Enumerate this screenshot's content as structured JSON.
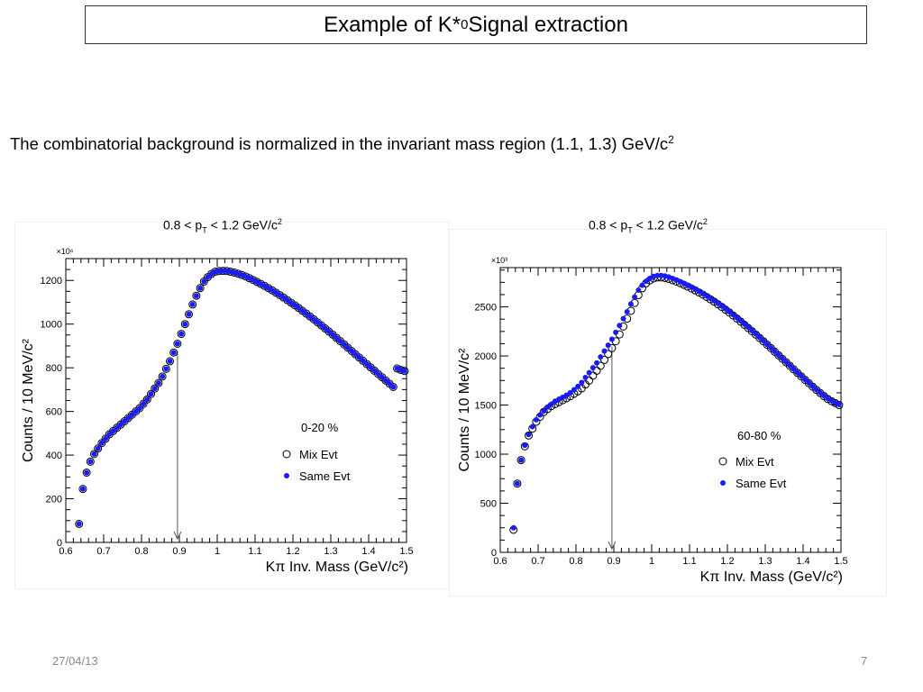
{
  "slide": {
    "title_main": "Example of K*",
    "title_sup": "0",
    "title_rest": " Signal extraction",
    "caption_main": "The combinatorial background is normalized in the invariant mass region (1.1, 1.3) GeV/c",
    "caption_sup": "2",
    "date": "27/04/13",
    "page": "7"
  },
  "panel_titles": [
    {
      "pre": "0.8 < p",
      "sub": "T",
      "mid": " < 1.2 GeV/c",
      "sup": "2"
    },
    {
      "pre": "0.8 < p",
      "sub": "T",
      "mid": " < 1.2 GeV/c",
      "sup": "2"
    }
  ],
  "colors": {
    "same_evt": "#1a1aff",
    "mix_evt": "#000000",
    "frame": "#000000"
  },
  "chart_data": [
    {
      "type": "scatter",
      "centrality": "0-20 %",
      "xlabel": "Kπ Inv. Mass (GeV/c²)",
      "ylabel": "Counts / 10 MeV/c²",
      "y_multiplier": "×10⁶",
      "xlim": [
        0.6,
        1.5
      ],
      "ylim": [
        0,
        1300
      ],
      "xticks": [
        0.6,
        0.7,
        0.8,
        0.9,
        1,
        1.1,
        1.2,
        1.3,
        1.4,
        1.5
      ],
      "xtick_labels": [
        "0.6",
        "0.7",
        "0.8",
        "0.9",
        "1",
        "1.1",
        "1.2",
        "1.3",
        "1.4",
        "1.5"
      ],
      "yticks": [
        0,
        200,
        400,
        600,
        800,
        1000,
        1200
      ],
      "ytick_labels": [
        "0",
        "200",
        "400",
        "600",
        "800",
        "1000",
        "1200"
      ],
      "marker_x": 0.895,
      "legend": [
        "Mix Evt",
        "Same Evt"
      ],
      "series": [
        {
          "name": "Mix Evt",
          "marker": "open-circle",
          "x": [
            0.635,
            0.645,
            0.655,
            0.665,
            0.675,
            0.685,
            0.695,
            0.705,
            0.715,
            0.725,
            0.735,
            0.745,
            0.755,
            0.765,
            0.775,
            0.785,
            0.795,
            0.805,
            0.815,
            0.825,
            0.835,
            0.845,
            0.855,
            0.865,
            0.875,
            0.885,
            0.895,
            0.905,
            0.915,
            0.925,
            0.935,
            0.945,
            0.955,
            0.965,
            0.975,
            0.985,
            0.995,
            1.005,
            1.015,
            1.025,
            1.035,
            1.045,
            1.055,
            1.065,
            1.075,
            1.085,
            1.095,
            1.105,
            1.115,
            1.125,
            1.135,
            1.145,
            1.155,
            1.165,
            1.175,
            1.185,
            1.195,
            1.205,
            1.215,
            1.225,
            1.235,
            1.245,
            1.255,
            1.265,
            1.275,
            1.285,
            1.295,
            1.305,
            1.315,
            1.325,
            1.335,
            1.345,
            1.355,
            1.365,
            1.375,
            1.385,
            1.395,
            1.405,
            1.415,
            1.425,
            1.435,
            1.445,
            1.455,
            1.465,
            1.475,
            1.485,
            1.495
          ],
          "y": [
            85,
            245,
            320,
            370,
            405,
            430,
            455,
            475,
            495,
            510,
            525,
            540,
            555,
            570,
            585,
            600,
            615,
            635,
            655,
            680,
            705,
            730,
            760,
            795,
            830,
            870,
            910,
            955,
            1000,
            1045,
            1090,
            1130,
            1165,
            1195,
            1215,
            1230,
            1240,
            1243,
            1244,
            1243,
            1240,
            1236,
            1231,
            1225,
            1218,
            1210,
            1202,
            1193,
            1184,
            1175,
            1165,
            1155,
            1144,
            1133,
            1122,
            1110,
            1098,
            1086,
            1074,
            1061,
            1048,
            1035,
            1022,
            1008,
            994,
            980,
            966,
            952,
            937,
            922,
            907,
            892,
            877,
            862,
            847,
            832,
            817,
            802,
            787,
            772,
            757,
            742,
            727,
            712,
            797,
            790,
            785
          ]
        },
        {
          "name": "Same Evt",
          "marker": "filled-circle",
          "x": [
            0.635,
            0.645,
            0.655,
            0.665,
            0.675,
            0.685,
            0.695,
            0.705,
            0.715,
            0.725,
            0.735,
            0.745,
            0.755,
            0.765,
            0.775,
            0.785,
            0.795,
            0.805,
            0.815,
            0.825,
            0.835,
            0.845,
            0.855,
            0.865,
            0.875,
            0.885,
            0.895,
            0.905,
            0.915,
            0.925,
            0.935,
            0.945,
            0.955,
            0.965,
            0.975,
            0.985,
            0.995,
            1.005,
            1.015,
            1.025,
            1.035,
            1.045,
            1.055,
            1.065,
            1.075,
            1.085,
            1.095,
            1.105,
            1.115,
            1.125,
            1.135,
            1.145,
            1.155,
            1.165,
            1.175,
            1.185,
            1.195,
            1.205,
            1.215,
            1.225,
            1.235,
            1.245,
            1.255,
            1.265,
            1.275,
            1.285,
            1.295,
            1.305,
            1.315,
            1.325,
            1.335,
            1.345,
            1.355,
            1.365,
            1.375,
            1.385,
            1.395,
            1.405,
            1.415,
            1.425,
            1.435,
            1.445,
            1.455,
            1.465,
            1.475,
            1.485,
            1.495
          ],
          "y": [
            85,
            245,
            320,
            370,
            405,
            430,
            455,
            475,
            495,
            510,
            525,
            540,
            555,
            570,
            585,
            600,
            615,
            635,
            655,
            680,
            705,
            730,
            760,
            795,
            830,
            870,
            910,
            955,
            1000,
            1045,
            1090,
            1130,
            1165,
            1195,
            1215,
            1230,
            1240,
            1243,
            1244,
            1243,
            1240,
            1236,
            1231,
            1225,
            1218,
            1210,
            1202,
            1193,
            1184,
            1175,
            1165,
            1155,
            1144,
            1133,
            1122,
            1110,
            1098,
            1086,
            1074,
            1061,
            1048,
            1035,
            1022,
            1008,
            994,
            980,
            966,
            952,
            937,
            922,
            907,
            892,
            877,
            862,
            847,
            832,
            817,
            802,
            787,
            772,
            757,
            742,
            727,
            712,
            797,
            790,
            785
          ]
        }
      ]
    },
    {
      "type": "scatter",
      "centrality": "60-80 %",
      "xlabel": "Kπ Inv. Mass (GeV/c²)",
      "ylabel": "Counts / 10 MeV/c²",
      "y_multiplier": "×10³",
      "xlim": [
        0.6,
        1.5
      ],
      "ylim": [
        0,
        2900
      ],
      "xticks": [
        0.6,
        0.7,
        0.8,
        0.9,
        1,
        1.1,
        1.2,
        1.3,
        1.4,
        1.5
      ],
      "xtick_labels": [
        "0.6",
        "0.7",
        "0.8",
        "0.9",
        "1",
        "1.1",
        "1.2",
        "1.3",
        "1.4",
        "1.5"
      ],
      "yticks": [
        0,
        500,
        1000,
        1500,
        2000,
        2500
      ],
      "ytick_labels": [
        "0",
        "500",
        "1000",
        "1500",
        "2000",
        "2500"
      ],
      "marker_x": 0.895,
      "legend": [
        "Mix Evt",
        "Same Evt"
      ],
      "series": [
        {
          "name": "Mix Evt",
          "marker": "open-circle",
          "x": [
            0.635,
            0.645,
            0.655,
            0.665,
            0.675,
            0.685,
            0.695,
            0.705,
            0.715,
            0.725,
            0.735,
            0.745,
            0.755,
            0.765,
            0.775,
            0.785,
            0.795,
            0.805,
            0.815,
            0.825,
            0.835,
            0.845,
            0.855,
            0.865,
            0.875,
            0.885,
            0.895,
            0.905,
            0.915,
            0.925,
            0.935,
            0.945,
            0.955,
            0.965,
            0.975,
            0.985,
            0.995,
            1.005,
            1.015,
            1.025,
            1.035,
            1.045,
            1.055,
            1.065,
            1.075,
            1.085,
            1.095,
            1.105,
            1.115,
            1.125,
            1.135,
            1.145,
            1.155,
            1.165,
            1.175,
            1.185,
            1.195,
            1.205,
            1.215,
            1.225,
            1.235,
            1.245,
            1.255,
            1.265,
            1.275,
            1.285,
            1.295,
            1.305,
            1.315,
            1.325,
            1.335,
            1.345,
            1.355,
            1.365,
            1.375,
            1.385,
            1.395,
            1.405,
            1.415,
            1.425,
            1.435,
            1.445,
            1.455,
            1.465,
            1.475,
            1.485,
            1.495
          ],
          "y": [
            230,
            700,
            940,
            1080,
            1190,
            1260,
            1330,
            1380,
            1430,
            1460,
            1490,
            1510,
            1530,
            1550,
            1570,
            1590,
            1615,
            1640,
            1670,
            1710,
            1750,
            1800,
            1850,
            1900,
            1960,
            2020,
            2080,
            2150,
            2220,
            2300,
            2380,
            2460,
            2540,
            2620,
            2690,
            2740,
            2770,
            2790,
            2800,
            2800,
            2795,
            2785,
            2772,
            2758,
            2742,
            2725,
            2707,
            2688,
            2668,
            2647,
            2625,
            2602,
            2578,
            2553,
            2527,
            2500,
            2472,
            2443,
            2413,
            2382,
            2350,
            2318,
            2285,
            2252,
            2218,
            2184,
            2150,
            2115,
            2080,
            2044,
            2008,
            1972,
            1936,
            1900,
            1864,
            1828,
            1792,
            1757,
            1722,
            1688,
            1655,
            1623,
            1592,
            1562,
            1540,
            1520,
            1500
          ]
        },
        {
          "name": "Same Evt",
          "marker": "filled-circle",
          "x": [
            0.635,
            0.645,
            0.655,
            0.665,
            0.675,
            0.685,
            0.695,
            0.705,
            0.715,
            0.725,
            0.735,
            0.745,
            0.755,
            0.765,
            0.775,
            0.785,
            0.795,
            0.805,
            0.815,
            0.825,
            0.835,
            0.845,
            0.855,
            0.865,
            0.875,
            0.885,
            0.895,
            0.905,
            0.915,
            0.925,
            0.935,
            0.945,
            0.955,
            0.965,
            0.975,
            0.985,
            0.995,
            1.005,
            1.015,
            1.025,
            1.035,
            1.045,
            1.055,
            1.065,
            1.075,
            1.085,
            1.095,
            1.105,
            1.115,
            1.125,
            1.135,
            1.145,
            1.155,
            1.165,
            1.175,
            1.185,
            1.195,
            1.205,
            1.215,
            1.225,
            1.235,
            1.245,
            1.255,
            1.265,
            1.275,
            1.285,
            1.295,
            1.305,
            1.315,
            1.325,
            1.335,
            1.345,
            1.355,
            1.365,
            1.375,
            1.385,
            1.395,
            1.405,
            1.415,
            1.425,
            1.435,
            1.445,
            1.455,
            1.465,
            1.475,
            1.485,
            1.495
          ],
          "y": [
            250,
            700,
            940,
            1090,
            1200,
            1280,
            1350,
            1400,
            1440,
            1480,
            1510,
            1540,
            1560,
            1580,
            1600,
            1625,
            1655,
            1690,
            1730,
            1780,
            1830,
            1880,
            1930,
            1990,
            2050,
            2110,
            2170,
            2240,
            2310,
            2380,
            2450,
            2530,
            2600,
            2670,
            2720,
            2760,
            2790,
            2810,
            2820,
            2820,
            2815,
            2805,
            2790,
            2775,
            2758,
            2740,
            2720,
            2700,
            2680,
            2658,
            2635,
            2612,
            2587,
            2562,
            2536,
            2509,
            2480,
            2451,
            2421,
            2390,
            2358,
            2325,
            2292,
            2258,
            2224,
            2189,
            2154,
            2118,
            2082,
            2046,
            2010,
            1974,
            1938,
            1902,
            1866,
            1830,
            1795,
            1760,
            1725,
            1691,
            1658,
            1626,
            1596,
            1567,
            1545,
            1525,
            1505
          ]
        }
      ]
    }
  ]
}
